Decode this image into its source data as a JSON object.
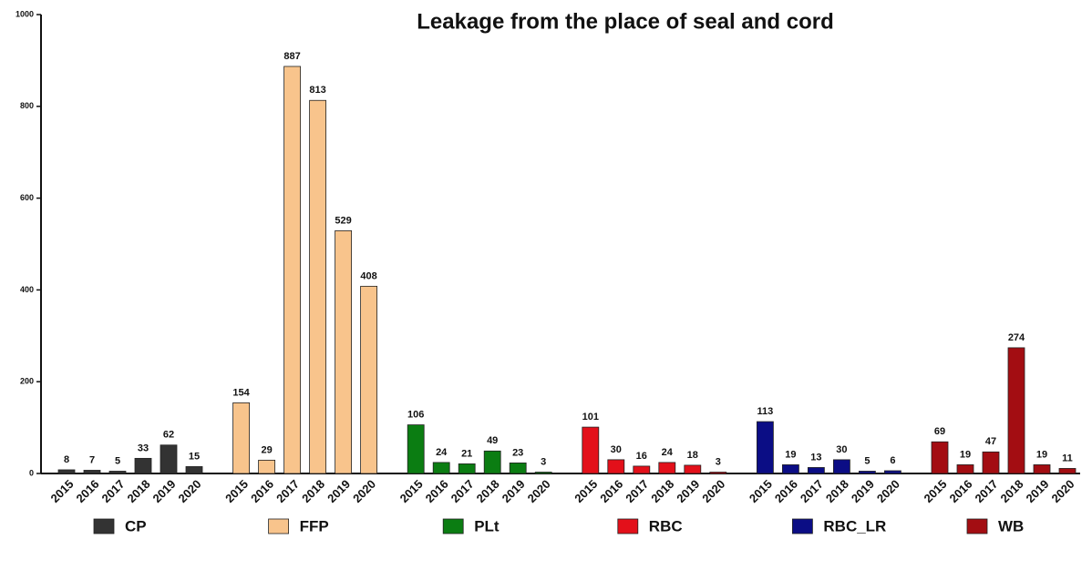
{
  "chart_data": {
    "type": "bar",
    "title": "Leakage from the place of seal and cord",
    "categories": [
      "2015",
      "2016",
      "2017",
      "2018",
      "2019",
      "2020"
    ],
    "series": [
      {
        "name": "CP",
        "color": "#333333",
        "values": [
          8,
          7,
          5,
          33,
          62,
          15
        ]
      },
      {
        "name": "FFP",
        "color": "#f8c48c",
        "values": [
          154,
          29,
          887,
          813,
          529,
          408
        ]
      },
      {
        "name": "PLt",
        "color": "#0b7d12",
        "values": [
          106,
          24,
          21,
          49,
          23,
          3
        ]
      },
      {
        "name": "RBC",
        "color": "#e3101a",
        "values": [
          101,
          30,
          16,
          24,
          18,
          3
        ]
      },
      {
        "name": "RBC_LR",
        "color": "#0b0d85",
        "values": [
          113,
          19,
          13,
          30,
          5,
          6
        ]
      },
      {
        "name": "WB",
        "color": "#a30d12",
        "values": [
          69,
          19,
          47,
          274,
          19,
          11
        ]
      }
    ],
    "ylim": [
      0,
      1000
    ],
    "yticks": [
      0,
      200,
      400,
      600,
      800,
      1000
    ],
    "legend": "bottom"
  }
}
